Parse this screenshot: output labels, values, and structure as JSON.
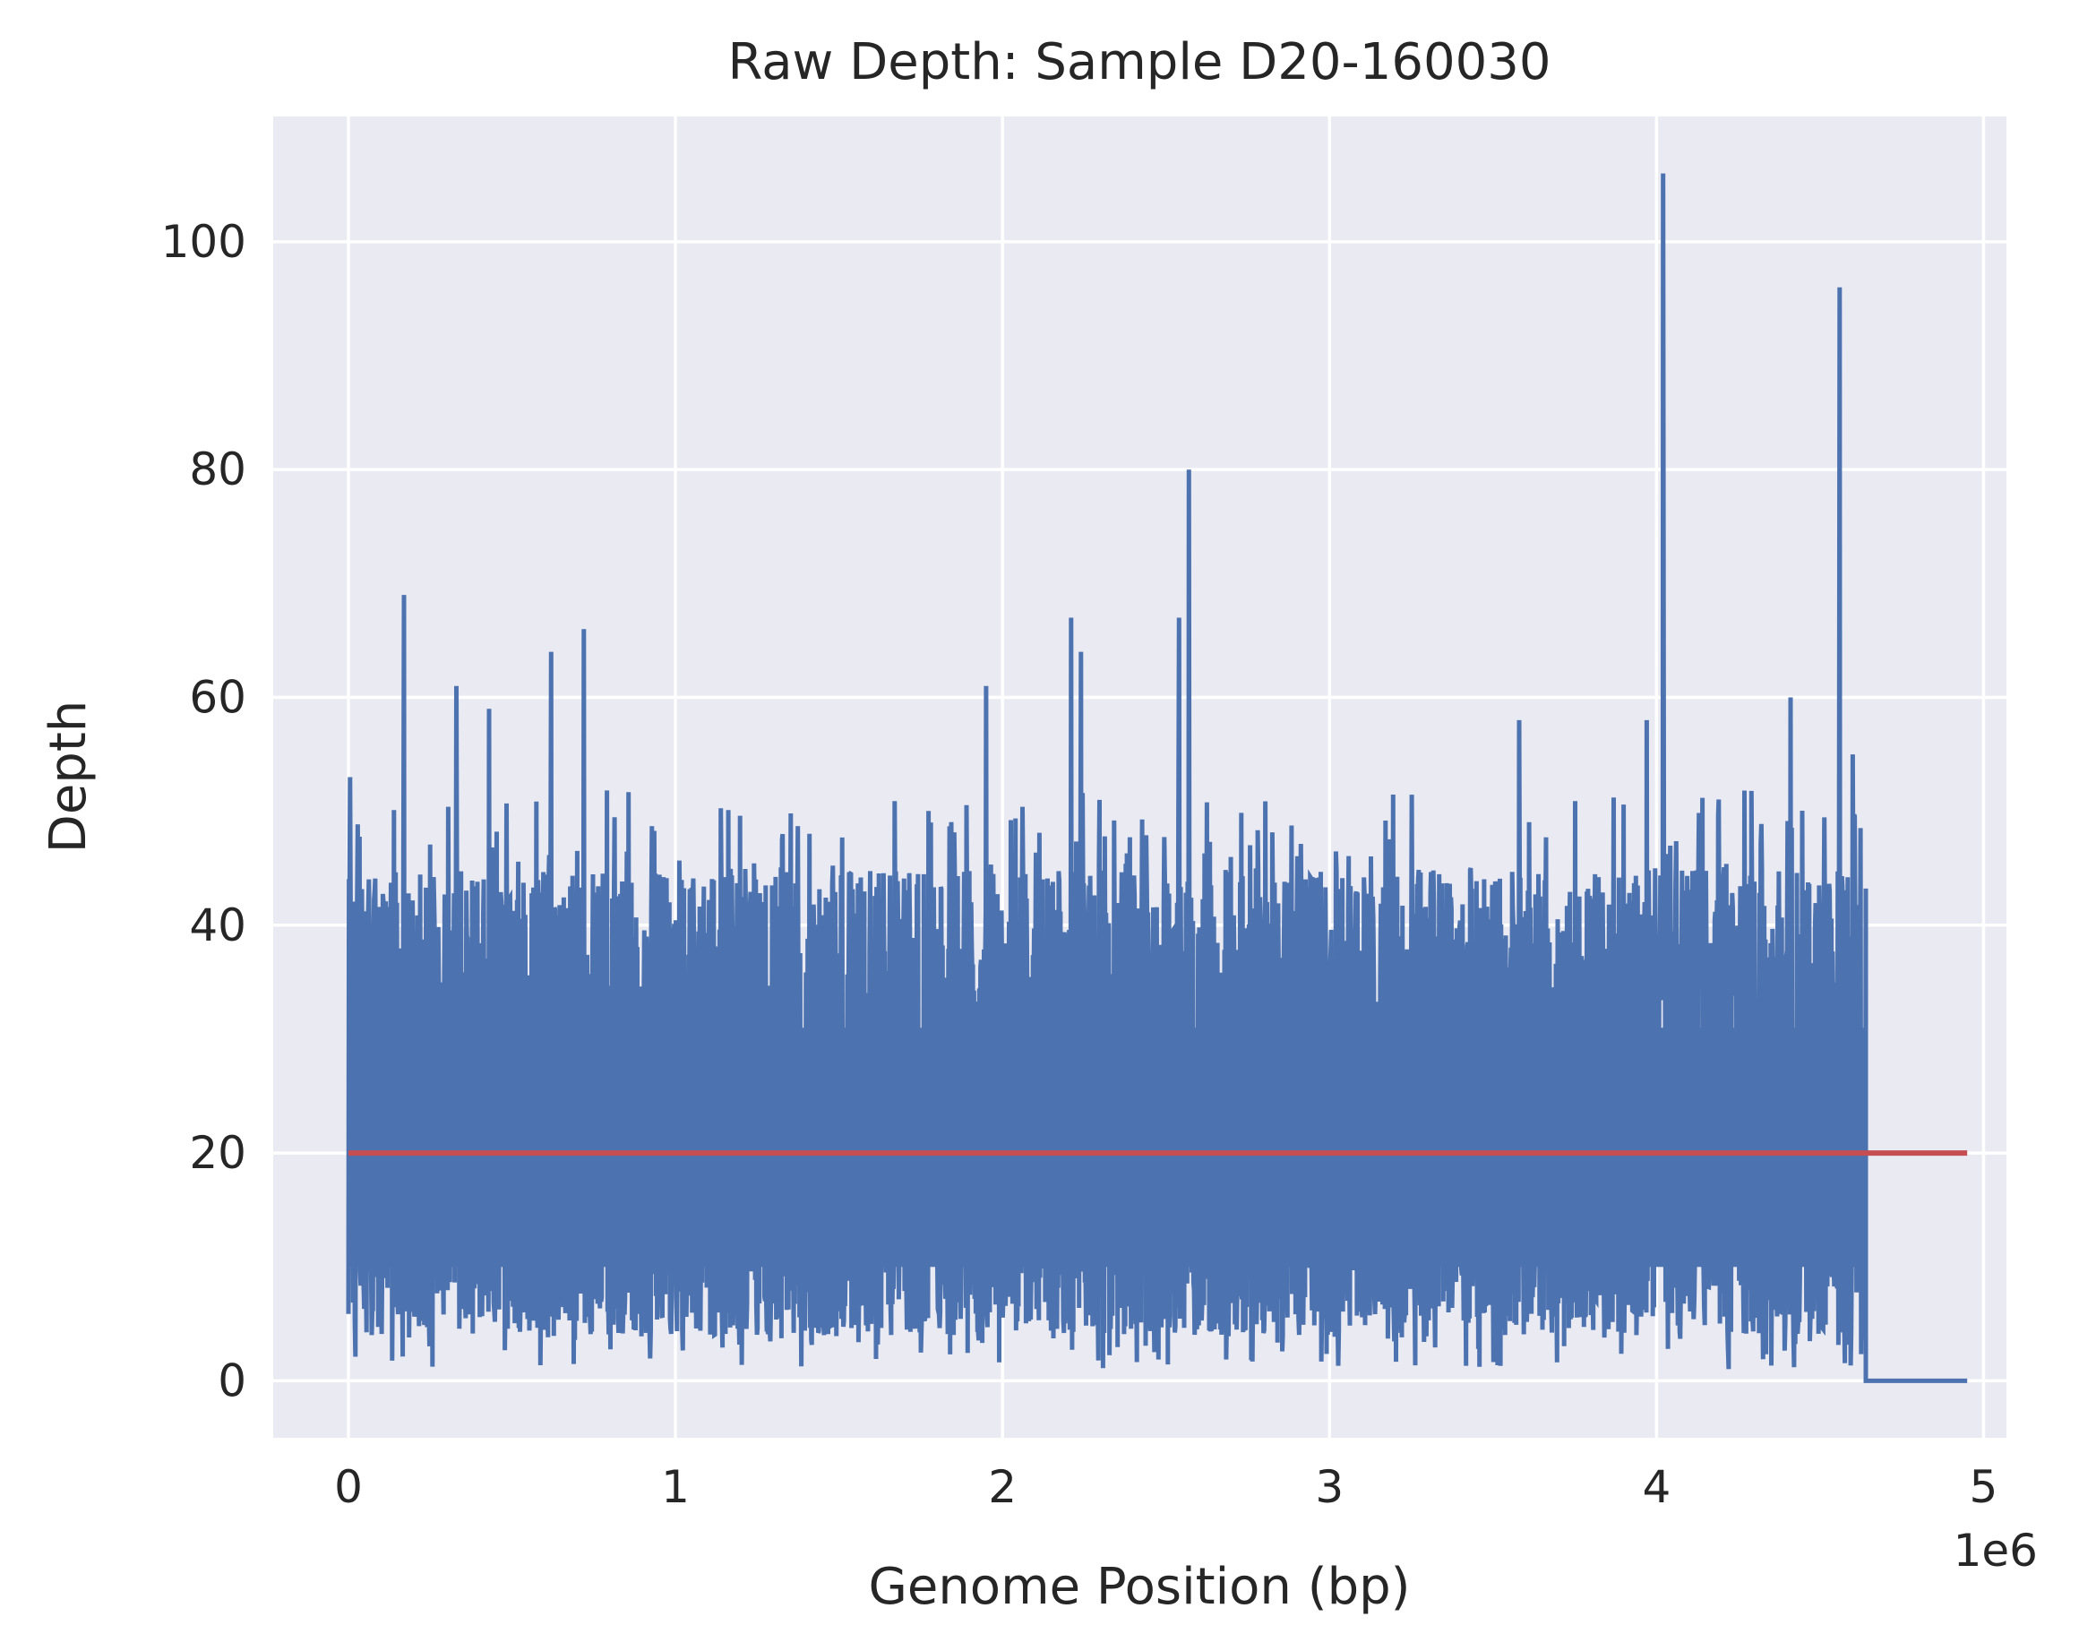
{
  "chart_data": {
    "type": "line",
    "title": "Raw Depth: Sample D20-160030",
    "xlabel": "Genome Position (bp)",
    "ylabel": "Depth",
    "x_offset_label": "1e6",
    "xlim": [
      -0.23,
      5.07
    ],
    "ylim": [
      -5,
      111
    ],
    "xticks": [
      0,
      1,
      2,
      3,
      4,
      5
    ],
    "xtick_labels": [
      "0",
      "1",
      "2",
      "3",
      "4",
      "5"
    ],
    "yticks": [
      0,
      20,
      40,
      60,
      80,
      100
    ],
    "ytick_labels": [
      "0",
      "20",
      "40",
      "60",
      "80",
      "100"
    ],
    "grid": true,
    "background": "#eaeaf2",
    "series": [
      {
        "style": "dense noisy line",
        "color": "#4c72b0",
        "x_range": [
          0,
          4.64
        ],
        "typical_band": [
          10,
          35
        ],
        "baseline": 20,
        "peaks": [
          {
            "x": 0.005,
            "y": 53
          },
          {
            "x": 0.17,
            "y": 69
          },
          {
            "x": 0.33,
            "y": 61
          },
          {
            "x": 0.43,
            "y": 59
          },
          {
            "x": 0.62,
            "y": 64
          },
          {
            "x": 0.72,
            "y": 66
          },
          {
            "x": 1.95,
            "y": 61
          },
          {
            "x": 2.21,
            "y": 67
          },
          {
            "x": 2.24,
            "y": 64
          },
          {
            "x": 2.54,
            "y": 67
          },
          {
            "x": 2.57,
            "y": 80
          },
          {
            "x": 3.58,
            "y": 58
          },
          {
            "x": 3.97,
            "y": 58
          },
          {
            "x": 4.02,
            "y": 106
          },
          {
            "x": 4.41,
            "y": 60
          },
          {
            "x": 4.56,
            "y": 96
          },
          {
            "x": 4.6,
            "y": 55
          }
        ],
        "tail": [
          {
            "x": 4.64,
            "y": 0
          },
          {
            "x": 4.95,
            "y": 0
          }
        ]
      },
      {
        "style": "horizontal line",
        "color": "#c44e52",
        "x": [
          0,
          4.95
        ],
        "y": [
          20,
          20
        ]
      }
    ]
  }
}
